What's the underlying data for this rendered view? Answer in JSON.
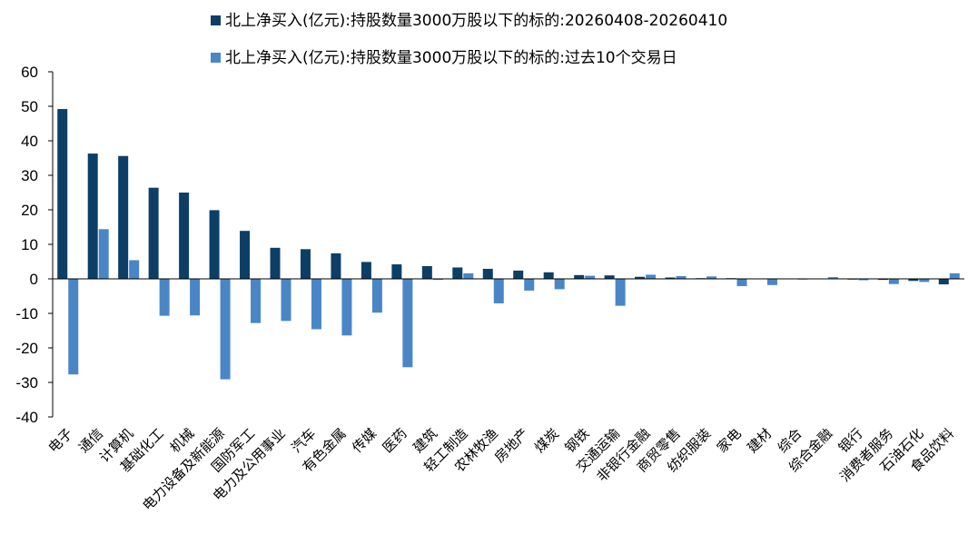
{
  "chart_data": {
    "type": "bar",
    "ylim": [
      -40,
      60
    ],
    "yticks": [
      -40,
      -30,
      -20,
      -10,
      0,
      10,
      20,
      30,
      40,
      50,
      60
    ],
    "grid": false,
    "legend_position": "top",
    "categories": [
      "电子",
      "通信",
      "计算机",
      "基础化工",
      "机械",
      "电力设备及新能源",
      "国防军工",
      "电力及公用事业",
      "汽车",
      "有色金属",
      "传媒",
      "医药",
      "建筑",
      "轻工制造",
      "农林牧渔",
      "房地产",
      "煤炭",
      "钢铁",
      "交通运输",
      "非银行金融",
      "商贸零售",
      "纺织服装",
      "家电",
      "建材",
      "综合",
      "综合金融",
      "银行",
      "消费者服务",
      "石油石化",
      "食品饮料"
    ],
    "series": [
      {
        "name": "北上净买入(亿元):持股数量3000万股以下的标的:20260408-20260410",
        "color": "#0d3f66",
        "values": [
          49.2,
          36.3,
          35.6,
          26.4,
          25.0,
          19.9,
          13.9,
          9.0,
          8.6,
          7.4,
          4.9,
          4.2,
          3.7,
          3.3,
          2.9,
          2.4,
          1.9,
          1.1,
          1.0,
          0.6,
          0.4,
          0.2,
          0.2,
          0.1,
          0.1,
          0.1,
          -0.2,
          -0.3,
          -0.6,
          -1.6
        ]
      },
      {
        "name": "北上净买入(亿元):持股数量3000万股以下的标的:过去10个交易日",
        "color": "#4a86c6",
        "values": [
          -27.7,
          14.4,
          5.4,
          -10.7,
          -10.6,
          -29.1,
          -12.8,
          -12.2,
          -14.6,
          -16.4,
          -9.8,
          -25.6,
          -0.3,
          1.6,
          -7.1,
          -3.4,
          -3.0,
          0.9,
          -7.8,
          1.2,
          0.8,
          0.7,
          -2.1,
          -1.8,
          -0.2,
          0.5,
          -0.4,
          -1.5,
          -0.9,
          1.6
        ]
      }
    ]
  }
}
